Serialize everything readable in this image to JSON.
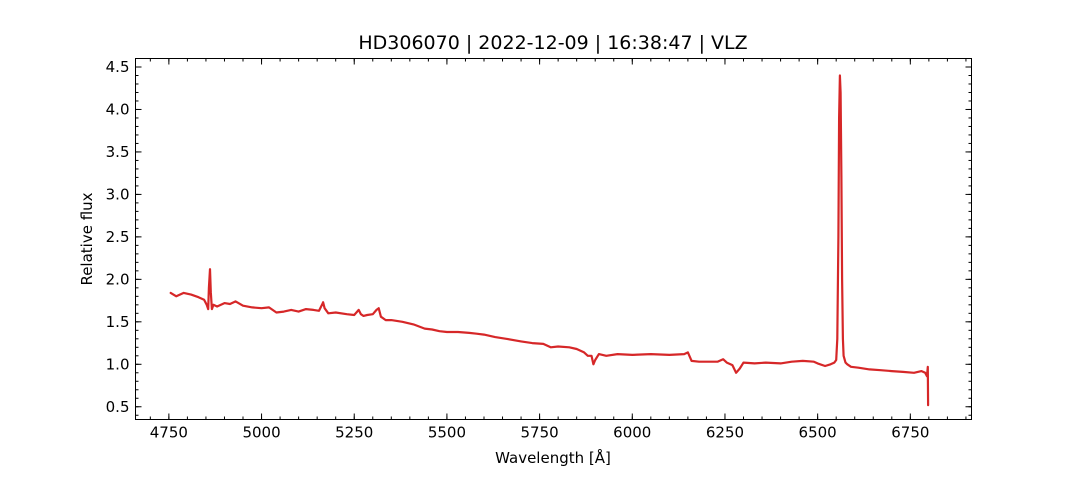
{
  "chart_data": {
    "type": "line",
    "title": "HD306070 | 2022-12-09 | 16:38:47 | VLZ",
    "xlabel": "Wavelength [Å]",
    "ylabel": "Relative flux",
    "xlim": [
      4660,
      6915
    ],
    "ylim": [
      0.35,
      4.6
    ],
    "x_ticks": [
      4750,
      5000,
      5250,
      5500,
      5750,
      6000,
      6250,
      6500,
      6750
    ],
    "x_tick_labels": [
      "4750",
      "5000",
      "5250",
      "5500",
      "5750",
      "6000",
      "6250",
      "6500",
      "6750"
    ],
    "y_ticks": [
      0.5,
      1.0,
      1.5,
      2.0,
      2.5,
      3.0,
      3.5,
      4.0,
      4.5
    ],
    "y_tick_labels": [
      "0.5",
      "1.0",
      "1.5",
      "2.0",
      "2.5",
      "3.0",
      "3.5",
      "4.0",
      "4.5"
    ],
    "x_minor_step": 50,
    "y_minor_step": 0.1,
    "ticks_direction": "in",
    "grid": false,
    "series": [
      {
        "color": "#d62728",
        "x": [
          4755,
          4770,
          4790,
          4810,
          4830,
          4845,
          4852,
          4856,
          4858,
          4861,
          4863,
          4866,
          4870,
          4880,
          4900,
          4915,
          4930,
          4950,
          4975,
          5000,
          5020,
          5040,
          5060,
          5080,
          5100,
          5120,
          5140,
          5155,
          5163,
          5166,
          5170,
          5180,
          5200,
          5230,
          5250,
          5262,
          5268,
          5275,
          5285,
          5300,
          5310,
          5316,
          5322,
          5335,
          5350,
          5380,
          5410,
          5440,
          5460,
          5480,
          5500,
          5530,
          5560,
          5580,
          5600,
          5630,
          5660,
          5700,
          5730,
          5760,
          5780,
          5800,
          5830,
          5850,
          5870,
          5880,
          5890,
          5895,
          5900,
          5910,
          5930,
          5960,
          6000,
          6050,
          6100,
          6140,
          6150,
          6160,
          6180,
          6200,
          6230,
          6245,
          6255,
          6270,
          6280,
          6290,
          6300,
          6330,
          6360,
          6400,
          6430,
          6460,
          6490,
          6500,
          6520,
          6535,
          6545,
          6550,
          6553,
          6556,
          6558,
          6560,
          6562,
          6564,
          6566,
          6568,
          6570,
          6575,
          6580,
          6590,
          6610,
          6640,
          6670,
          6700,
          6730,
          6760,
          6780,
          6790,
          6795,
          6797,
          6798
        ],
        "values": [
          1.84,
          1.8,
          1.84,
          1.82,
          1.79,
          1.76,
          1.7,
          1.65,
          1.9,
          2.12,
          1.85,
          1.65,
          1.7,
          1.68,
          1.72,
          1.71,
          1.74,
          1.69,
          1.67,
          1.66,
          1.67,
          1.61,
          1.62,
          1.64,
          1.62,
          1.65,
          1.64,
          1.63,
          1.7,
          1.73,
          1.66,
          1.6,
          1.61,
          1.59,
          1.58,
          1.64,
          1.59,
          1.57,
          1.58,
          1.59,
          1.64,
          1.66,
          1.56,
          1.52,
          1.52,
          1.5,
          1.47,
          1.42,
          1.41,
          1.39,
          1.38,
          1.38,
          1.37,
          1.36,
          1.35,
          1.32,
          1.3,
          1.27,
          1.25,
          1.24,
          1.2,
          1.21,
          1.2,
          1.18,
          1.14,
          1.1,
          1.1,
          1.0,
          1.05,
          1.12,
          1.1,
          1.12,
          1.11,
          1.12,
          1.11,
          1.12,
          1.14,
          1.04,
          1.03,
          1.03,
          1.03,
          1.06,
          1.02,
          0.99,
          0.9,
          0.95,
          1.02,
          1.01,
          1.02,
          1.01,
          1.03,
          1.04,
          1.03,
          1.01,
          0.98,
          1.0,
          1.02,
          1.05,
          1.3,
          2.5,
          3.9,
          4.4,
          4.2,
          3.2,
          2.0,
          1.3,
          1.1,
          1.02,
          1.0,
          0.97,
          0.96,
          0.94,
          0.93,
          0.92,
          0.91,
          0.9,
          0.92,
          0.9,
          0.86,
          0.97,
          0.52
        ]
      }
    ]
  }
}
